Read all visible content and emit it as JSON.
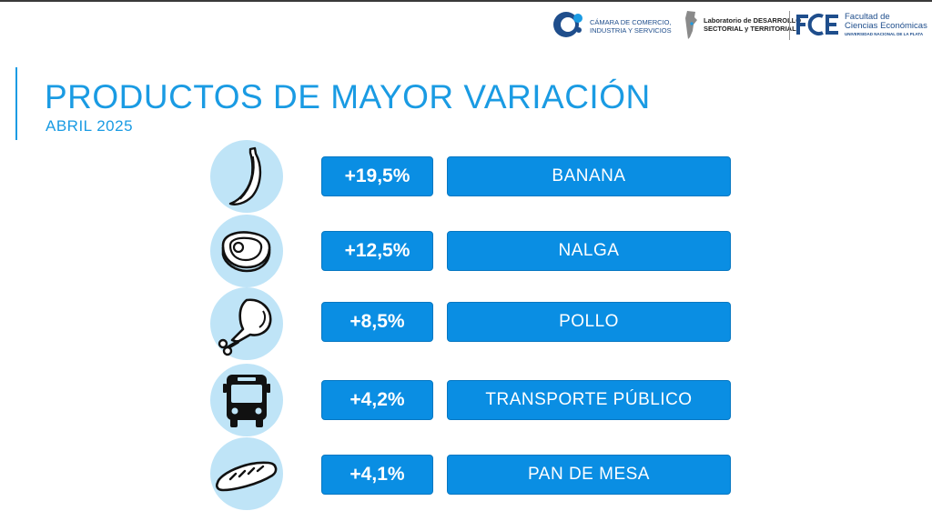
{
  "logos": {
    "camara": {
      "line1": "CÁMARA DE COMERCIO,",
      "line2": "INDUSTRIA Y SERVICIOS"
    },
    "laboratorio": {
      "line1": "Laboratorio de DESARROLLO",
      "line2": "SECTORIAL y TERRITORIAL"
    },
    "facultad": {
      "line1": "Facultad de",
      "line2": "Ciencias Económicas",
      "line3": "UNIVERSIDAD NACIONAL DE LA PLATA"
    }
  },
  "header": {
    "title": "PRODUCTOS DE MAYOR VARIACIÓN",
    "subtitle": "ABRIL 2025"
  },
  "products": [
    {
      "icon": "banana-icon",
      "variation": "+19,5%",
      "name": "BANANA"
    },
    {
      "icon": "steak-icon",
      "variation": "+12,5%",
      "name": "NALGA"
    },
    {
      "icon": "chicken-leg-icon",
      "variation": "+8,5%",
      "name": "POLLO"
    },
    {
      "icon": "bus-icon",
      "variation": "+4,2%",
      "name": "TRANSPORTE PÚBLICO"
    },
    {
      "icon": "bread-icon",
      "variation": "+4,1%",
      "name": "PAN DE MESA"
    }
  ],
  "colors": {
    "accent": "#1a9be3",
    "box": "#0a8ee3",
    "icon_bg": "#bfe4f7"
  }
}
